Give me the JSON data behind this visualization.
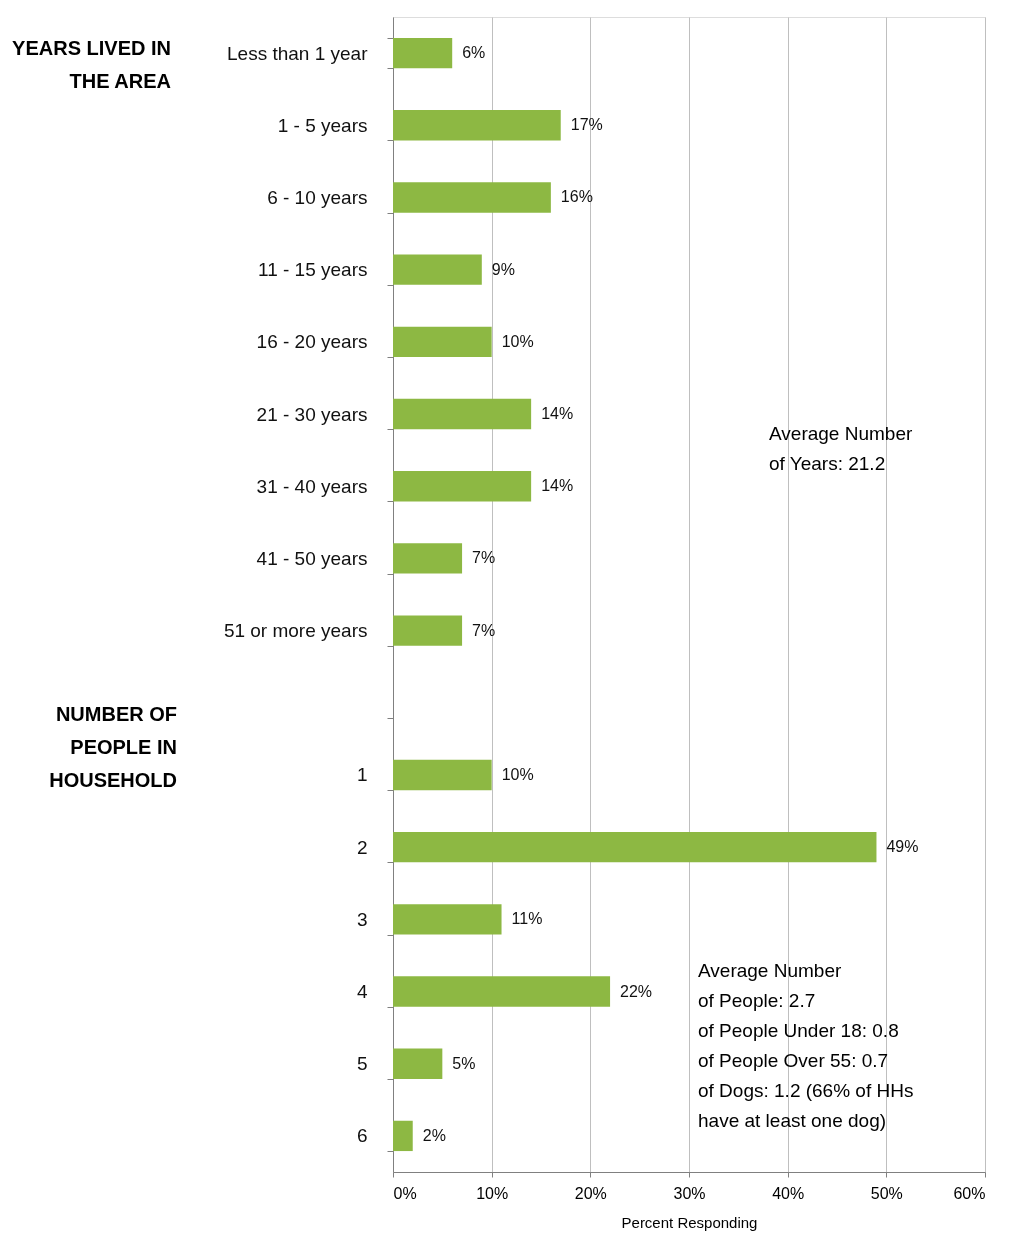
{
  "chart_data": {
    "type": "bar",
    "orientation": "horizontal",
    "xlabel": "Percent Responding",
    "categories": [
      "Less than 1 year",
      "1 - 5 years",
      "6 - 10 years",
      "11 - 15 years",
      "16 - 20 years",
      "21 - 30 years",
      "31 - 40 years",
      "41 - 50 years",
      "51 or more years",
      null,
      "1",
      "2",
      "3",
      "4",
      "5",
      "6"
    ],
    "values": [
      6,
      17,
      16,
      9,
      10,
      14,
      14,
      7,
      7,
      null,
      10,
      49,
      11,
      22,
      5,
      2
    ],
    "value_labels": [
      "6%",
      "17%",
      "16%",
      "9%",
      "10%",
      "14%",
      "14%",
      "7%",
      "7%",
      null,
      "10%",
      "49%",
      "11%",
      "22%",
      "5%",
      "2%"
    ],
    "color": "#8db843",
    "xlim": [
      0,
      60
    ],
    "xticks": [
      {
        "value": 0,
        "label": "0%"
      },
      {
        "value": 10,
        "label": "10%"
      },
      {
        "value": 20,
        "label": "20%"
      },
      {
        "value": 30,
        "label": "30%"
      },
      {
        "value": 40,
        "label": "40%"
      },
      {
        "value": 50,
        "label": "50%"
      },
      {
        "value": 60,
        "label": "60%"
      }
    ],
    "grid": "x",
    "annotations": [
      "YEARS LIVED IN\nTHE AREA",
      "NUMBER OF\nPEOPLE IN\nHOUSEHOLD",
      "Average Number\nof Years: 21.2",
      "Average Number\nof People:  2.7\nof People Under 18:  0.8\nof People Over 55:  0.7\nof Dogs: 1.2 (66% of HHs\nhave at least one dog)"
    ]
  }
}
